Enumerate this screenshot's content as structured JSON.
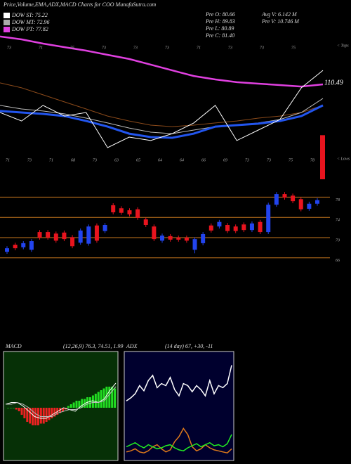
{
  "chart_data": [
    {
      "type": "line",
      "title": "Price,Volume,EMA,ADX,MACD Charts for COO MunafaSutra.com",
      "indicators": [
        {
          "label": "DOW ST: 75.22",
          "color": "#ffffff"
        },
        {
          "label": "DOW MT: 72.96",
          "color": "#aaaaaa"
        },
        {
          "label": "DOW PT: 77.82",
          "color": "#e040e0"
        }
      ],
      "info": [
        "Pre O: 80.66",
        "Pre H: 89.83",
        "Pre L: 80.89",
        "Pre C: 81.40",
        "Avg V: 6.142 M",
        "Pre V: 10.746 M"
      ],
      "last_price_label": "110.49",
      "tops_label": "< Tops",
      "lows_label": "< Lows",
      "top_labels": [
        "73",
        "71",
        "75",
        "73",
        "73",
        "73",
        "71",
        "73",
        "73",
        "75"
      ],
      "bottom_labels": [
        "71",
        "73",
        "71",
        "68",
        "73",
        "63",
        "65",
        "64",
        "64",
        "66",
        "69",
        "73",
        "73",
        "75",
        "78"
      ],
      "ylim": [
        0,
        100
      ],
      "series": [
        {
          "color": "#e040e0",
          "width": 2.5,
          "values": [
            101.5,
            99.5,
            96.6,
            94.1,
            91.7,
            88.8,
            85.9,
            82,
            78,
            74.1,
            71.7,
            69.8,
            68.8,
            67.8,
            66.8,
            68.3
          ]
        },
        {
          "color": "#8b4a1a",
          "width": 1,
          "values": [
            69.3,
            65.9,
            61,
            56.1,
            51.2,
            46.3,
            42.9,
            40,
            39,
            40,
            41.5,
            42.9,
            44.9,
            46.3,
            48.8,
            53.7
          ]
        },
        {
          "color": "#bbbbbb",
          "width": 1,
          "values": [
            53.7,
            51.2,
            49.8,
            47.8,
            44.9,
            41.5,
            38,
            35.1,
            34.1,
            36.6,
            39,
            40,
            41.5,
            43.9,
            48.8,
            58.5
          ]
        },
        {
          "color": "#2255ee",
          "width": 3,
          "values": [
            49.8,
            48.8,
            47.8,
            46.3,
            42.9,
            39,
            34.1,
            31.7,
            31.2,
            34.1,
            39,
            40,
            41,
            42.9,
            46.3,
            53.7
          ]
        },
        {
          "color": "#ffffff",
          "width": 1,
          "values": [
            48.8,
            42.9,
            53.7,
            46.3,
            48.8,
            24.4,
            31.7,
            29.3,
            34.1,
            41.5,
            53.7,
            29.3,
            36.6,
            43.9,
            65.9,
            78
          ]
        }
      ],
      "volume": {
        "color": "#e8141e",
        "vlim": [
          0,
          12
        ],
        "values": [
          10.746
        ]
      }
    },
    {
      "type": "candlestick",
      "up_color": "#2244ee",
      "down_color": "#e8141e",
      "ylim": [
        62,
        82
      ],
      "yticks": [
        78,
        74,
        70,
        66
      ],
      "grid_color": "#c8781e",
      "open": [
        67.2,
        68.6,
        68.1,
        67.6,
        71.1,
        71.1,
        70.8,
        71.0,
        70.1,
        69.0,
        68.8,
        72.4,
        71.3,
        76.4,
        75.8,
        75.4,
        75.6,
        73.6,
        72.2,
        69.4,
        70.3,
        70.0,
        70.0,
        67.6,
        68.9,
        72.4,
        72.2,
        72.5,
        72.2,
        72.6,
        71.5,
        73.1,
        71.1,
        76.5,
        78.6,
        78.3,
        77.6,
        75.7,
        76.7
      ],
      "high": [
        68.3,
        69.0,
        69.3,
        69.7,
        71.5,
        71.5,
        71.2,
        71.4,
        70.5,
        71.8,
        72.6,
        72.8,
        72.9,
        76.8,
        76.2,
        75.8,
        76.0,
        74.0,
        72.6,
        70.8,
        70.7,
        70.4,
        70.4,
        70.1,
        71.1,
        72.8,
        73.5,
        72.9,
        72.6,
        73.0,
        73.2,
        73.5,
        76.9,
        79.0,
        79.0,
        78.7,
        78.0,
        77.1,
        77.8
      ],
      "low": [
        66.8,
        67.5,
        67.7,
        67.2,
        69.6,
        69.6,
        69.0,
        69.3,
        67.9,
        68.6,
        68.4,
        69.0,
        70.9,
        74.6,
        74.5,
        74.2,
        73.5,
        72.1,
        69.3,
        69.0,
        69.2,
        69.2,
        69.0,
        66.9,
        68.5,
        71.0,
        71.8,
        70.9,
        70.9,
        71.1,
        71.1,
        70.7,
        70.7,
        76.1,
        77.5,
        76.8,
        75.2,
        75.3,
        76.3
      ],
      "close": [
        67.9,
        67.9,
        68.9,
        69.3,
        70.0,
        70.0,
        69.4,
        69.7,
        68.3,
        71.4,
        72.2,
        69.4,
        72.5,
        75.0,
        74.9,
        74.6,
        73.9,
        72.5,
        69.7,
        70.4,
        69.6,
        69.6,
        69.4,
        69.7,
        70.7,
        71.4,
        73.1,
        71.3,
        71.3,
        71.5,
        72.8,
        71.1,
        76.5,
        78.6,
        77.9,
        77.2,
        75.6,
        76.7,
        77.4
      ]
    },
    {
      "type": "macd",
      "title": "MACD",
      "params": "(12,26,9) 76.3, 74.51, 1.99",
      "ylim": [
        -30,
        30
      ],
      "pos_color": "#22dd22",
      "neg_color": "#ee2222",
      "histogram": [
        0,
        0,
        0,
        -1,
        -2,
        -4,
        -6,
        -8,
        -9,
        -10,
        -10,
        -10,
        -9,
        -9,
        -8,
        -7,
        -6,
        -5,
        -4,
        -3,
        -2,
        -1,
        1,
        2,
        3,
        4,
        4,
        5,
        5,
        6,
        6,
        7,
        8,
        9,
        10,
        11,
        12,
        12,
        12,
        11
      ],
      "series": [
        {
          "color": "#ffffff",
          "values": [
            2,
            3,
            3,
            1,
            -2,
            -5,
            -6,
            -6,
            -4,
            -2,
            0,
            -1,
            -2,
            1,
            3,
            4,
            3,
            5,
            10,
            14
          ]
        },
        {
          "color": "#bbbbbb",
          "values": [
            2,
            2,
            3,
            2,
            0,
            -3,
            -5,
            -5,
            -5,
            -3,
            -2,
            -1,
            -1,
            0,
            2,
            3,
            3,
            4,
            8,
            12
          ]
        }
      ]
    },
    {
      "type": "adx",
      "title": "ADX",
      "params": "(14 day) 67, +30, -11",
      "ylim": [
        0,
        100
      ],
      "series": [
        {
          "color": "#ffffff",
          "values": [
            55,
            58,
            62,
            70,
            65,
            75,
            80,
            68,
            72,
            70,
            78,
            66,
            60,
            72,
            70,
            64,
            70,
            66,
            60,
            75,
            62,
            70,
            68,
            72,
            90
          ]
        },
        {
          "color": "#e07a1a",
          "values": [
            5,
            6,
            8,
            5,
            4,
            6,
            10,
            12,
            8,
            5,
            7,
            15,
            20,
            28,
            22,
            10,
            6,
            8,
            12,
            9,
            7,
            6,
            5,
            4,
            8
          ]
        },
        {
          "color": "#22ee22",
          "values": [
            10,
            12,
            14,
            11,
            9,
            12,
            10,
            8,
            9,
            11,
            12,
            9,
            7,
            6,
            9,
            11,
            13,
            10,
            12,
            14,
            11,
            12,
            10,
            13,
            22
          ]
        }
      ]
    }
  ]
}
